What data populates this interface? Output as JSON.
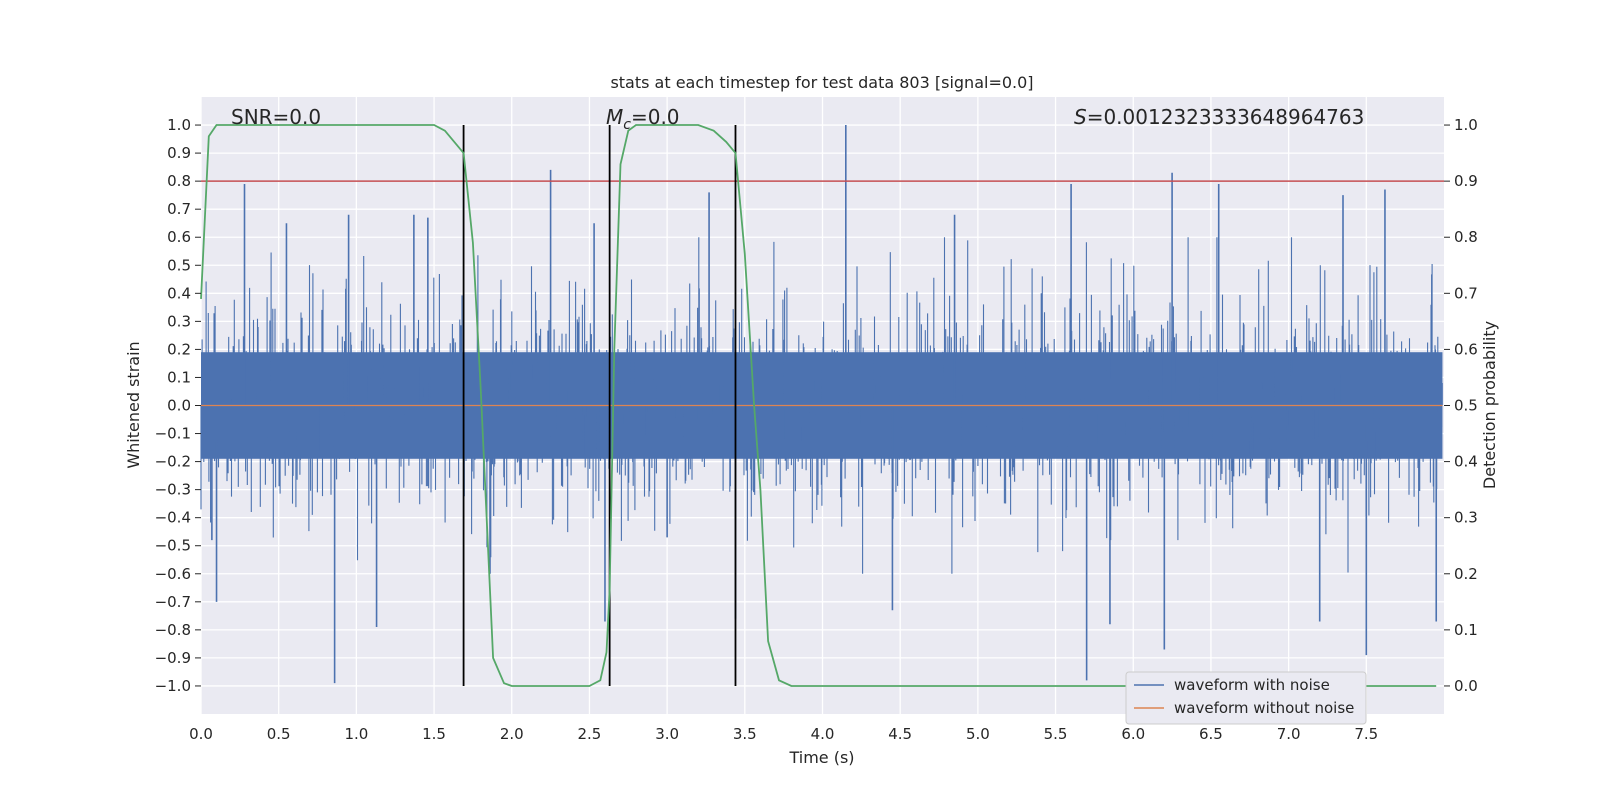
{
  "chart_data": {
    "type": "line",
    "title": "stats at each timestep for test data 803 [signal=0.0]",
    "xlabel": "Time (s)",
    "ylabel_left": "Whitened strain",
    "ylabel_right": "Detection probability",
    "xlim": [
      0.0,
      8.0
    ],
    "ylim_left": [
      -1.1,
      1.1
    ],
    "ylim_right": [
      -0.05,
      1.05
    ],
    "x_ticks": [
      "0.0",
      "0.5",
      "1.0",
      "1.5",
      "2.0",
      "2.5",
      "3.0",
      "3.5",
      "4.0",
      "4.5",
      "5.0",
      "5.5",
      "6.0",
      "6.5",
      "7.0",
      "7.5"
    ],
    "y_left_ticks": [
      "1.0",
      "0.9",
      "0.8",
      "0.7",
      "0.6",
      "0.5",
      "0.4",
      "0.3",
      "0.2",
      "0.1",
      "0.0",
      "-0.1",
      "-0.2",
      "-0.3",
      "-0.4",
      "-0.5",
      "-0.6",
      "-0.7",
      "-0.8",
      "-0.9",
      "-1.0"
    ],
    "y_right_ticks": [
      "1.0",
      "0.9",
      "0.8",
      "0.7",
      "0.6",
      "0.5",
      "0.4",
      "0.3",
      "0.2",
      "0.1",
      "0.0"
    ],
    "annotations": {
      "snr": "SNR=0.0",
      "mc_symbol": "M",
      "mc_sub": "c",
      "mc_value": "=0.0",
      "s_symbol": "S",
      "s_value": "=0.0012323333648964763"
    },
    "threshold": {
      "value": 0.9,
      "axis": "right",
      "color": "#c44e52"
    },
    "vertical_markers": [
      1.69,
      2.63,
      3.44
    ],
    "noisy_waveform": {
      "name": "waveform with noise",
      "color": "#4c72b0",
      "typical_envelope": 0.3,
      "spikes": [
        [
          0.28,
          0.79
        ],
        [
          0.55,
          0.65
        ],
        [
          0.95,
          0.68
        ],
        [
          1.37,
          0.68
        ],
        [
          1.46,
          0.67
        ],
        [
          2.25,
          0.84
        ],
        [
          2.53,
          0.65
        ],
        [
          3.27,
          0.76
        ],
        [
          4.15,
          1.0
        ],
        [
          4.85,
          0.68
        ],
        [
          5.6,
          0.79
        ],
        [
          6.25,
          0.83
        ],
        [
          6.55,
          0.79
        ],
        [
          7.35,
          0.75
        ],
        [
          7.62,
          0.77
        ],
        [
          0.07,
          -0.48
        ],
        [
          0.1,
          -0.7
        ],
        [
          0.86,
          -0.99
        ],
        [
          1.13,
          -0.79
        ],
        [
          1.86,
          -0.6
        ],
        [
          2.6,
          -0.77
        ],
        [
          3.0,
          -0.47
        ],
        [
          3.44,
          -0.76
        ],
        [
          4.45,
          -0.73
        ],
        [
          5.7,
          -0.98
        ],
        [
          5.85,
          -0.78
        ],
        [
          6.2,
          -0.87
        ],
        [
          7.2,
          -0.77
        ],
        [
          7.5,
          -0.89
        ],
        [
          7.95,
          -0.77
        ]
      ]
    },
    "clean_waveform": {
      "name": "waveform without noise",
      "color": "#dd8452",
      "values": "zero"
    },
    "detection_probability": {
      "name": "detection probability",
      "color": "#55a868",
      "axis": "right",
      "x": [
        0.0,
        0.05,
        0.1,
        0.15,
        0.5,
        1.0,
        1.5,
        1.57,
        1.63,
        1.69,
        1.75,
        1.8,
        1.88,
        1.95,
        2.0,
        2.5,
        2.57,
        2.61,
        2.63,
        2.66,
        2.7,
        2.75,
        2.8,
        3.0,
        3.2,
        3.3,
        3.38,
        3.44,
        3.5,
        3.56,
        3.6,
        3.65,
        3.72,
        3.8,
        4.5,
        5.5,
        6.5,
        7.5,
        7.95
      ],
      "values": [
        0.69,
        0.98,
        1.0,
        1.0,
        1.0,
        1.0,
        1.0,
        0.99,
        0.97,
        0.95,
        0.79,
        0.53,
        0.05,
        0.005,
        0.0,
        0.0,
        0.01,
        0.06,
        0.17,
        0.6,
        0.93,
        0.99,
        1.0,
        1.0,
        1.0,
        0.99,
        0.97,
        0.95,
        0.77,
        0.5,
        0.35,
        0.08,
        0.01,
        0.0,
        0.0,
        0.0,
        0.0,
        0.0,
        0.0
      ]
    },
    "legend": {
      "position": "lower-right",
      "entries": [
        {
          "label": "waveform with noise",
          "color": "#4c72b0"
        },
        {
          "label": "waveform without noise",
          "color": "#dd8452"
        }
      ]
    },
    "grid": true
  }
}
